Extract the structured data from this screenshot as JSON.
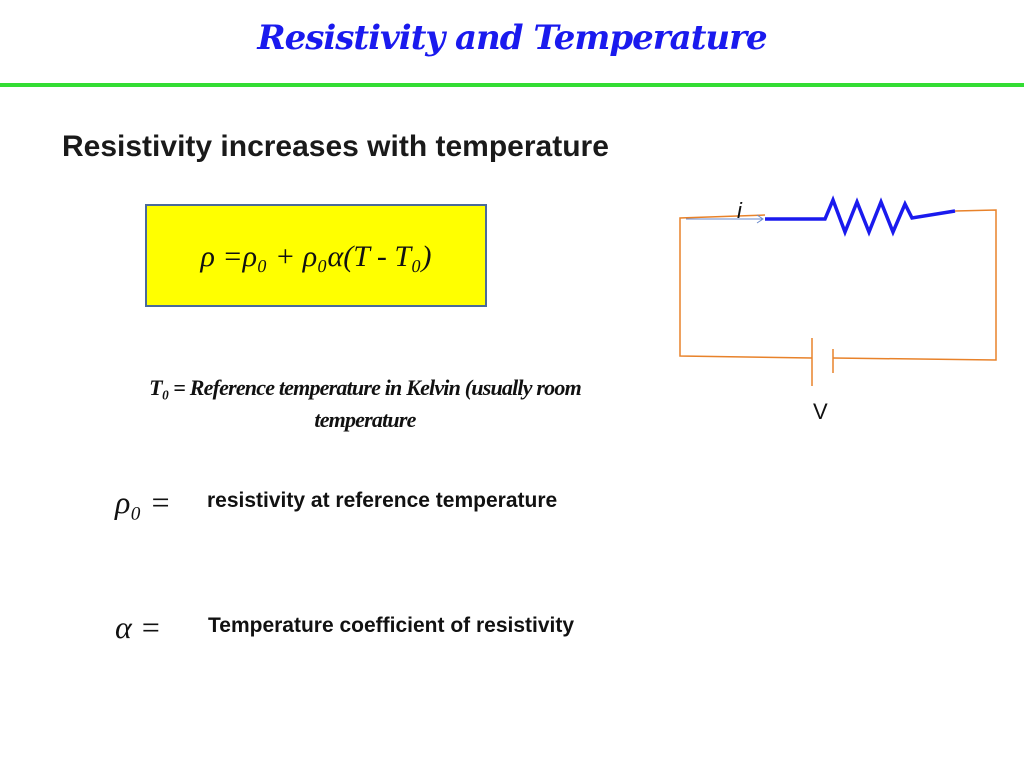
{
  "header": {
    "title": "Resistivity and Temperature"
  },
  "subtitle": "Resistivity increases with temperature",
  "formula": "ρ =ρ₀ + ρ₀α(T - T₀)",
  "note": "T₀ = Reference temperature in Kelvin (usually room temperature",
  "definitions": [
    {
      "symbol": "ρ₀ =",
      "text": "resistivity at reference temperature"
    },
    {
      "symbol": "α =",
      "text": "Temperature coefficient of resistivity"
    }
  ],
  "circuit": {
    "current_label": "i",
    "voltage_label": "V"
  }
}
